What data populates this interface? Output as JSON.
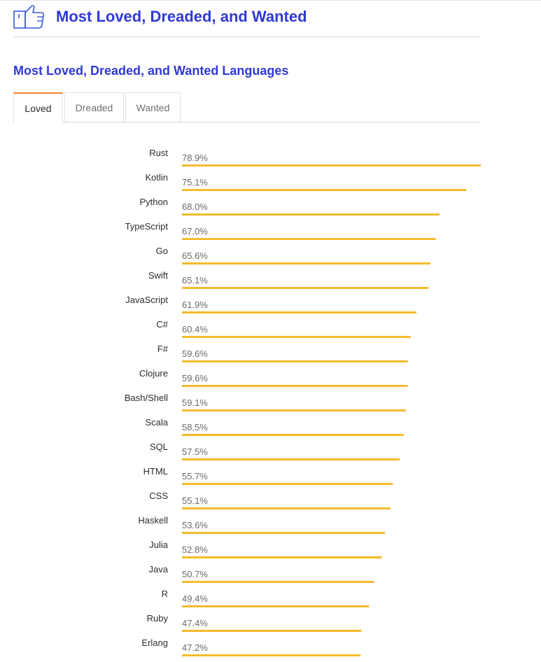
{
  "header": {
    "title": "Most Loved, Dreaded, and Wanted",
    "icon": "thumbs-up-icon"
  },
  "section": {
    "title": "Most Loved, Dreaded, and Wanted Languages"
  },
  "tabs": [
    {
      "label": "Loved",
      "active": true
    },
    {
      "label": "Dreaded",
      "active": false
    },
    {
      "label": "Wanted",
      "active": false
    }
  ],
  "colors": {
    "accent": "#3039d6",
    "bar": "#f4bb2c",
    "active_tab": "#f48024"
  },
  "chart_data": {
    "type": "bar",
    "orientation": "horizontal",
    "categories": [
      "Rust",
      "Kotlin",
      "Python",
      "TypeScript",
      "Go",
      "Swift",
      "JavaScript",
      "C#",
      "F#",
      "Clojure",
      "Bash/Shell",
      "Scala",
      "SQL",
      "HTML",
      "CSS",
      "Haskell",
      "Julia",
      "Java",
      "R",
      "Ruby",
      "Erlang"
    ],
    "values": [
      78.9,
      75.1,
      68.0,
      67.0,
      65.6,
      65.1,
      61.9,
      60.4,
      59.6,
      59.6,
      59.1,
      58.5,
      57.5,
      55.7,
      55.1,
      53.6,
      52.8,
      50.7,
      49.4,
      47.4,
      47.2
    ],
    "value_suffix": "%",
    "grid": false
  }
}
